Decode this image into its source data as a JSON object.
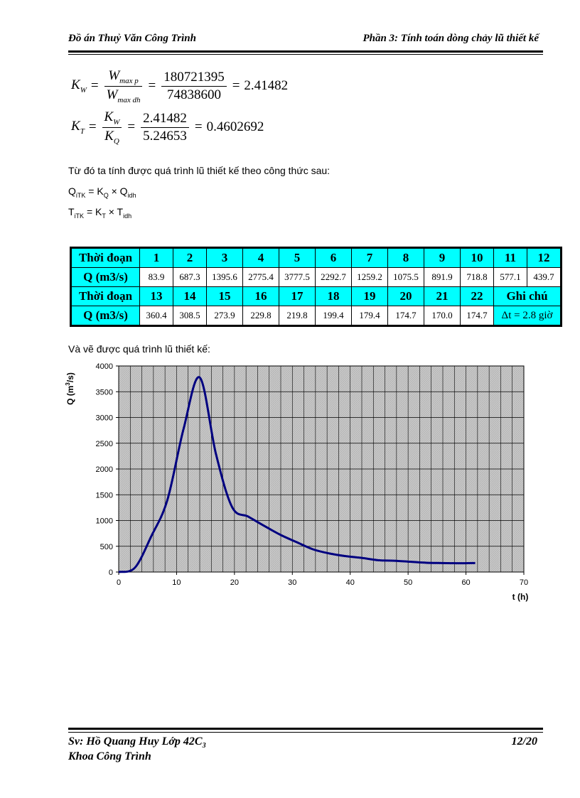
{
  "header": {
    "left": "Đồ án Thuỷ Văn Công Trình",
    "right": "Phần 3: Tính toán dòng chảy lũ thiết kế"
  },
  "formulas": {
    "kw": {
      "lhs": "K",
      "lhs_sub": "W",
      "num_var": "W",
      "num_sub": "max p",
      "den_var": "W",
      "den_sub": "max dh",
      "num_val": "180721395",
      "den_val": "74838600",
      "result": "2.41482"
    },
    "kt": {
      "lhs": "K",
      "lhs_sub": "T",
      "num_var": "K",
      "num_sub": "W",
      "den_var": "K",
      "den_sub": "Q",
      "num_val": "2.41482",
      "den_val": "5.24653",
      "result": "0.4602692"
    }
  },
  "text": {
    "intro": "Từ đó ta tính được quá trình lũ thiết kế theo công thức sau:",
    "eq1_lhs": "Q",
    "eq1_lhs_sub": "iTK",
    "eq1_mid": " = K",
    "eq1_mid_sub": "Q",
    "eq1_rhs": " × Q",
    "eq1_rhs_sub": "idh",
    "eq2_lhs": "T",
    "eq2_lhs_sub": "iTK",
    "eq2_mid": " = K",
    "eq2_mid_sub": "T",
    "eq2_rhs": " × T",
    "eq2_rhs_sub": "idh",
    "chart_intro": "Và vẽ được quá trình lũ thiết kế:"
  },
  "table": {
    "label_period": "Thời đoạn",
    "label_q": "Q (m3/s)",
    "periods1": [
      "1",
      "2",
      "3",
      "4",
      "5",
      "6",
      "7",
      "8",
      "9",
      "10",
      "11",
      "12"
    ],
    "q1": [
      "83.9",
      "687.3",
      "1395.6",
      "2775.4",
      "3777.5",
      "2292.7",
      "1259.2",
      "1075.5",
      "891.9",
      "718.8",
      "577.1",
      "439.7"
    ],
    "periods2": [
      "13",
      "14",
      "15",
      "16",
      "17",
      "18",
      "19",
      "20",
      "21",
      "22"
    ],
    "q2": [
      "360.4",
      "308.5",
      "273.9",
      "229.8",
      "219.8",
      "199.4",
      "179.4",
      "174.7",
      "170.0",
      "174.7"
    ],
    "note_label": "Ghi chú",
    "note_dt": "Δt =",
    "note_val": "2.8 giờ"
  },
  "chart_data": {
    "type": "line",
    "xlabel": "t (h)",
    "ylabel": "Q (m3/s)",
    "xlim": [
      0,
      70
    ],
    "ylim": [
      0,
      4000
    ],
    "xticks": [
      0,
      10,
      20,
      30,
      40,
      50,
      60,
      70
    ],
    "yticks": [
      0,
      500,
      1000,
      1500,
      2000,
      2500,
      3000,
      3500,
      4000
    ],
    "grid": true,
    "series": [
      {
        "color": "#000080",
        "x": [
          0,
          2.8,
          5.6,
          8.4,
          11.2,
          14.0,
          16.8,
          19.6,
          22.4,
          25.2,
          28.0,
          30.8,
          33.6,
          36.4,
          39.2,
          42.0,
          44.8,
          47.6,
          50.4,
          53.2,
          56.0,
          58.8,
          61.6
        ],
        "y": [
          0,
          83.9,
          687.3,
          1395.6,
          2775.4,
          3777.5,
          2292.7,
          1259.2,
          1075.5,
          891.9,
          718.8,
          577.1,
          439.7,
          360.4,
          308.5,
          273.9,
          229.8,
          219.8,
          199.4,
          179.4,
          174.7,
          170.0,
          174.7
        ]
      }
    ]
  },
  "footer": {
    "left1": "Sv: Hồ Quang Huy Lớp 42C",
    "left1_sub": "3",
    "left2": "Khoa Công Trình",
    "page": "12/20"
  }
}
